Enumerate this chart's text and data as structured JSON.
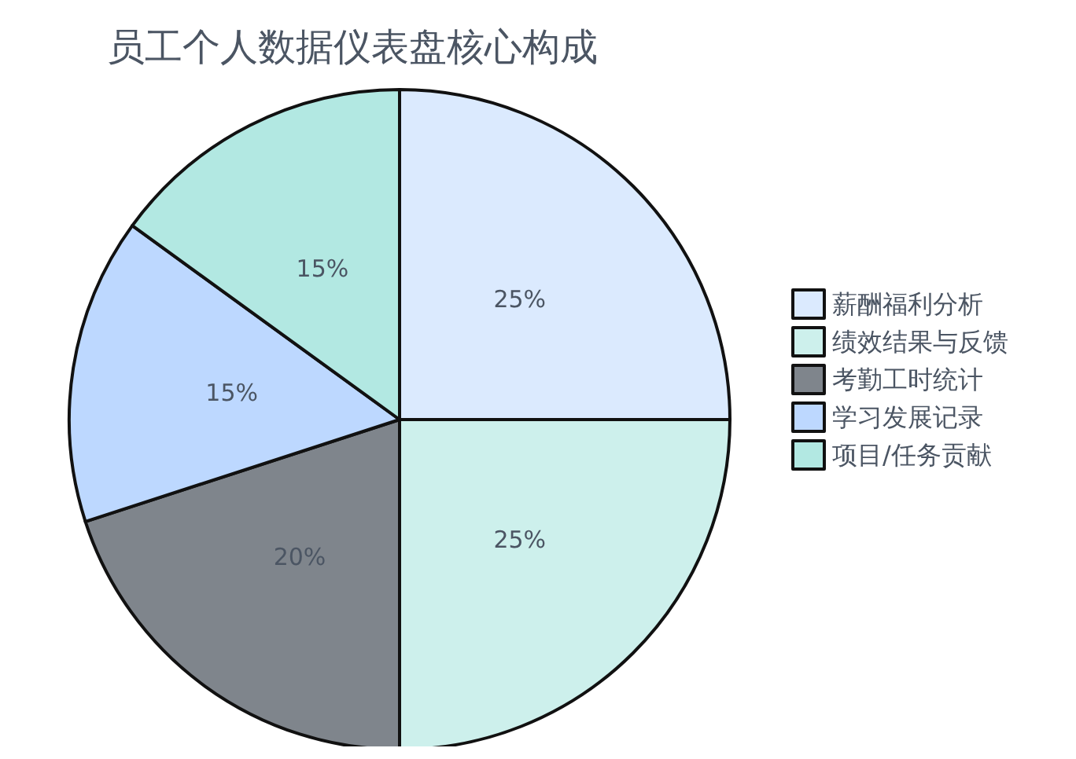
{
  "chart_data": {
    "type": "pie",
    "title": "员工个人数据仪表盘核心构成",
    "categories": [
      "薪酬福利分析",
      "绩效结果与反馈",
      "考勤工时统计",
      "学习发展记录",
      "项目/任务贡献"
    ],
    "values": [
      25,
      25,
      20,
      15,
      15
    ],
    "colors": [
      "#dbeafe",
      "#cdf0ec",
      "#7f858c",
      "#bdd8ff",
      "#b2e8e2"
    ],
    "value_labels": [
      "25%",
      "25%",
      "20%",
      "15%",
      "15%"
    ],
    "legend": "right"
  }
}
